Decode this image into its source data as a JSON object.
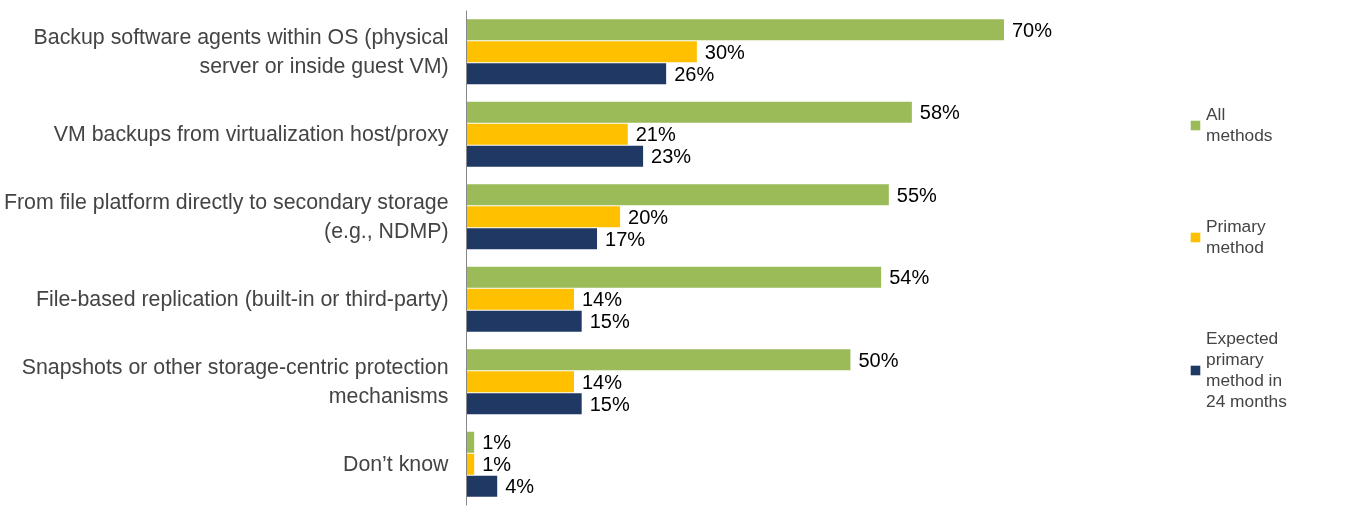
{
  "chart_data": {
    "type": "bar",
    "orientation": "horizontal",
    "categories": [
      "Backup software agents within OS (physical server or inside guest VM)",
      "VM backups from virtualization host/proxy",
      "From file platform directly to secondary storage (e.g., NDMP)",
      "File-based replication (built-in or third-party)",
      "Snapshots or other storage-centric protection mechanisms",
      "Don’t know"
    ],
    "series": [
      {
        "name": "All methods",
        "color": "#9bbb59",
        "values": [
          70,
          58,
          55,
          54,
          50,
          1
        ],
        "value_labels": [
          "70%",
          "58%",
          "55%",
          "54%",
          "50%",
          "1%"
        ]
      },
      {
        "name": "Primary method",
        "color": "#ffc000",
        "values": [
          30,
          21,
          20,
          14,
          14,
          1
        ],
        "value_labels": [
          "30%",
          "21%",
          "20%",
          "14%",
          "14%",
          "1%"
        ]
      },
      {
        "name": "Expected primary method in 24 months",
        "color": "#1f3864",
        "values": [
          26,
          23,
          17,
          15,
          15,
          4
        ],
        "value_labels": [
          "26%",
          "23%",
          "17%",
          "15%",
          "15%",
          "4%"
        ]
      }
    ],
    "grid": false,
    "legend": "right"
  }
}
